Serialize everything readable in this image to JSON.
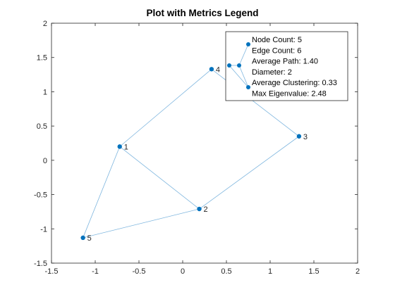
{
  "colors": {
    "node": "#0072BD",
    "edge": "#7DB5DE",
    "axis": "#262626",
    "background": "#ffffff"
  },
  "chart_data": {
    "type": "scatter",
    "subtype": "graph-network",
    "title": "Plot with Metrics Legend",
    "xlabel": "",
    "ylabel": "",
    "xlim": [
      -1.5,
      2
    ],
    "ylim": [
      -1.5,
      2
    ],
    "xticks": [
      -1.5,
      -1,
      -0.5,
      0,
      0.5,
      1,
      1.5,
      2
    ],
    "yticks": [
      -1.5,
      -1,
      -0.5,
      0,
      0.5,
      1,
      1.5,
      2
    ],
    "xtick_labels": [
      "-1.5",
      "-1",
      "-0.5",
      "0",
      "0.5",
      "1",
      "1.5",
      "2"
    ],
    "ytick_labels": [
      "-1.5",
      "-1",
      "-0.5",
      "0",
      "0.5",
      "1",
      "1.5",
      "2"
    ],
    "grid": false,
    "box": true,
    "legend_position": "top-right",
    "nodes": [
      {
        "label": "1",
        "x": -0.72,
        "y": 0.2
      },
      {
        "label": "2",
        "x": 0.19,
        "y": -0.71
      },
      {
        "label": "3",
        "x": 1.33,
        "y": 0.35
      },
      {
        "label": "4",
        "x": 0.33,
        "y": 1.33
      },
      {
        "label": "5",
        "x": -1.14,
        "y": -1.13
      }
    ],
    "edges": [
      [
        1,
        4
      ],
      [
        1,
        2
      ],
      [
        1,
        5
      ],
      [
        2,
        5
      ],
      [
        2,
        3
      ],
      [
        4,
        3
      ]
    ],
    "legend": {
      "entries": [
        "Node Count: 5",
        "Edge Count: 6",
        "Average Path: 1.40",
        "Diameter: 2",
        "Average Clustering: 0.33",
        "Max Eigenvalue: 2.48"
      ]
    }
  }
}
